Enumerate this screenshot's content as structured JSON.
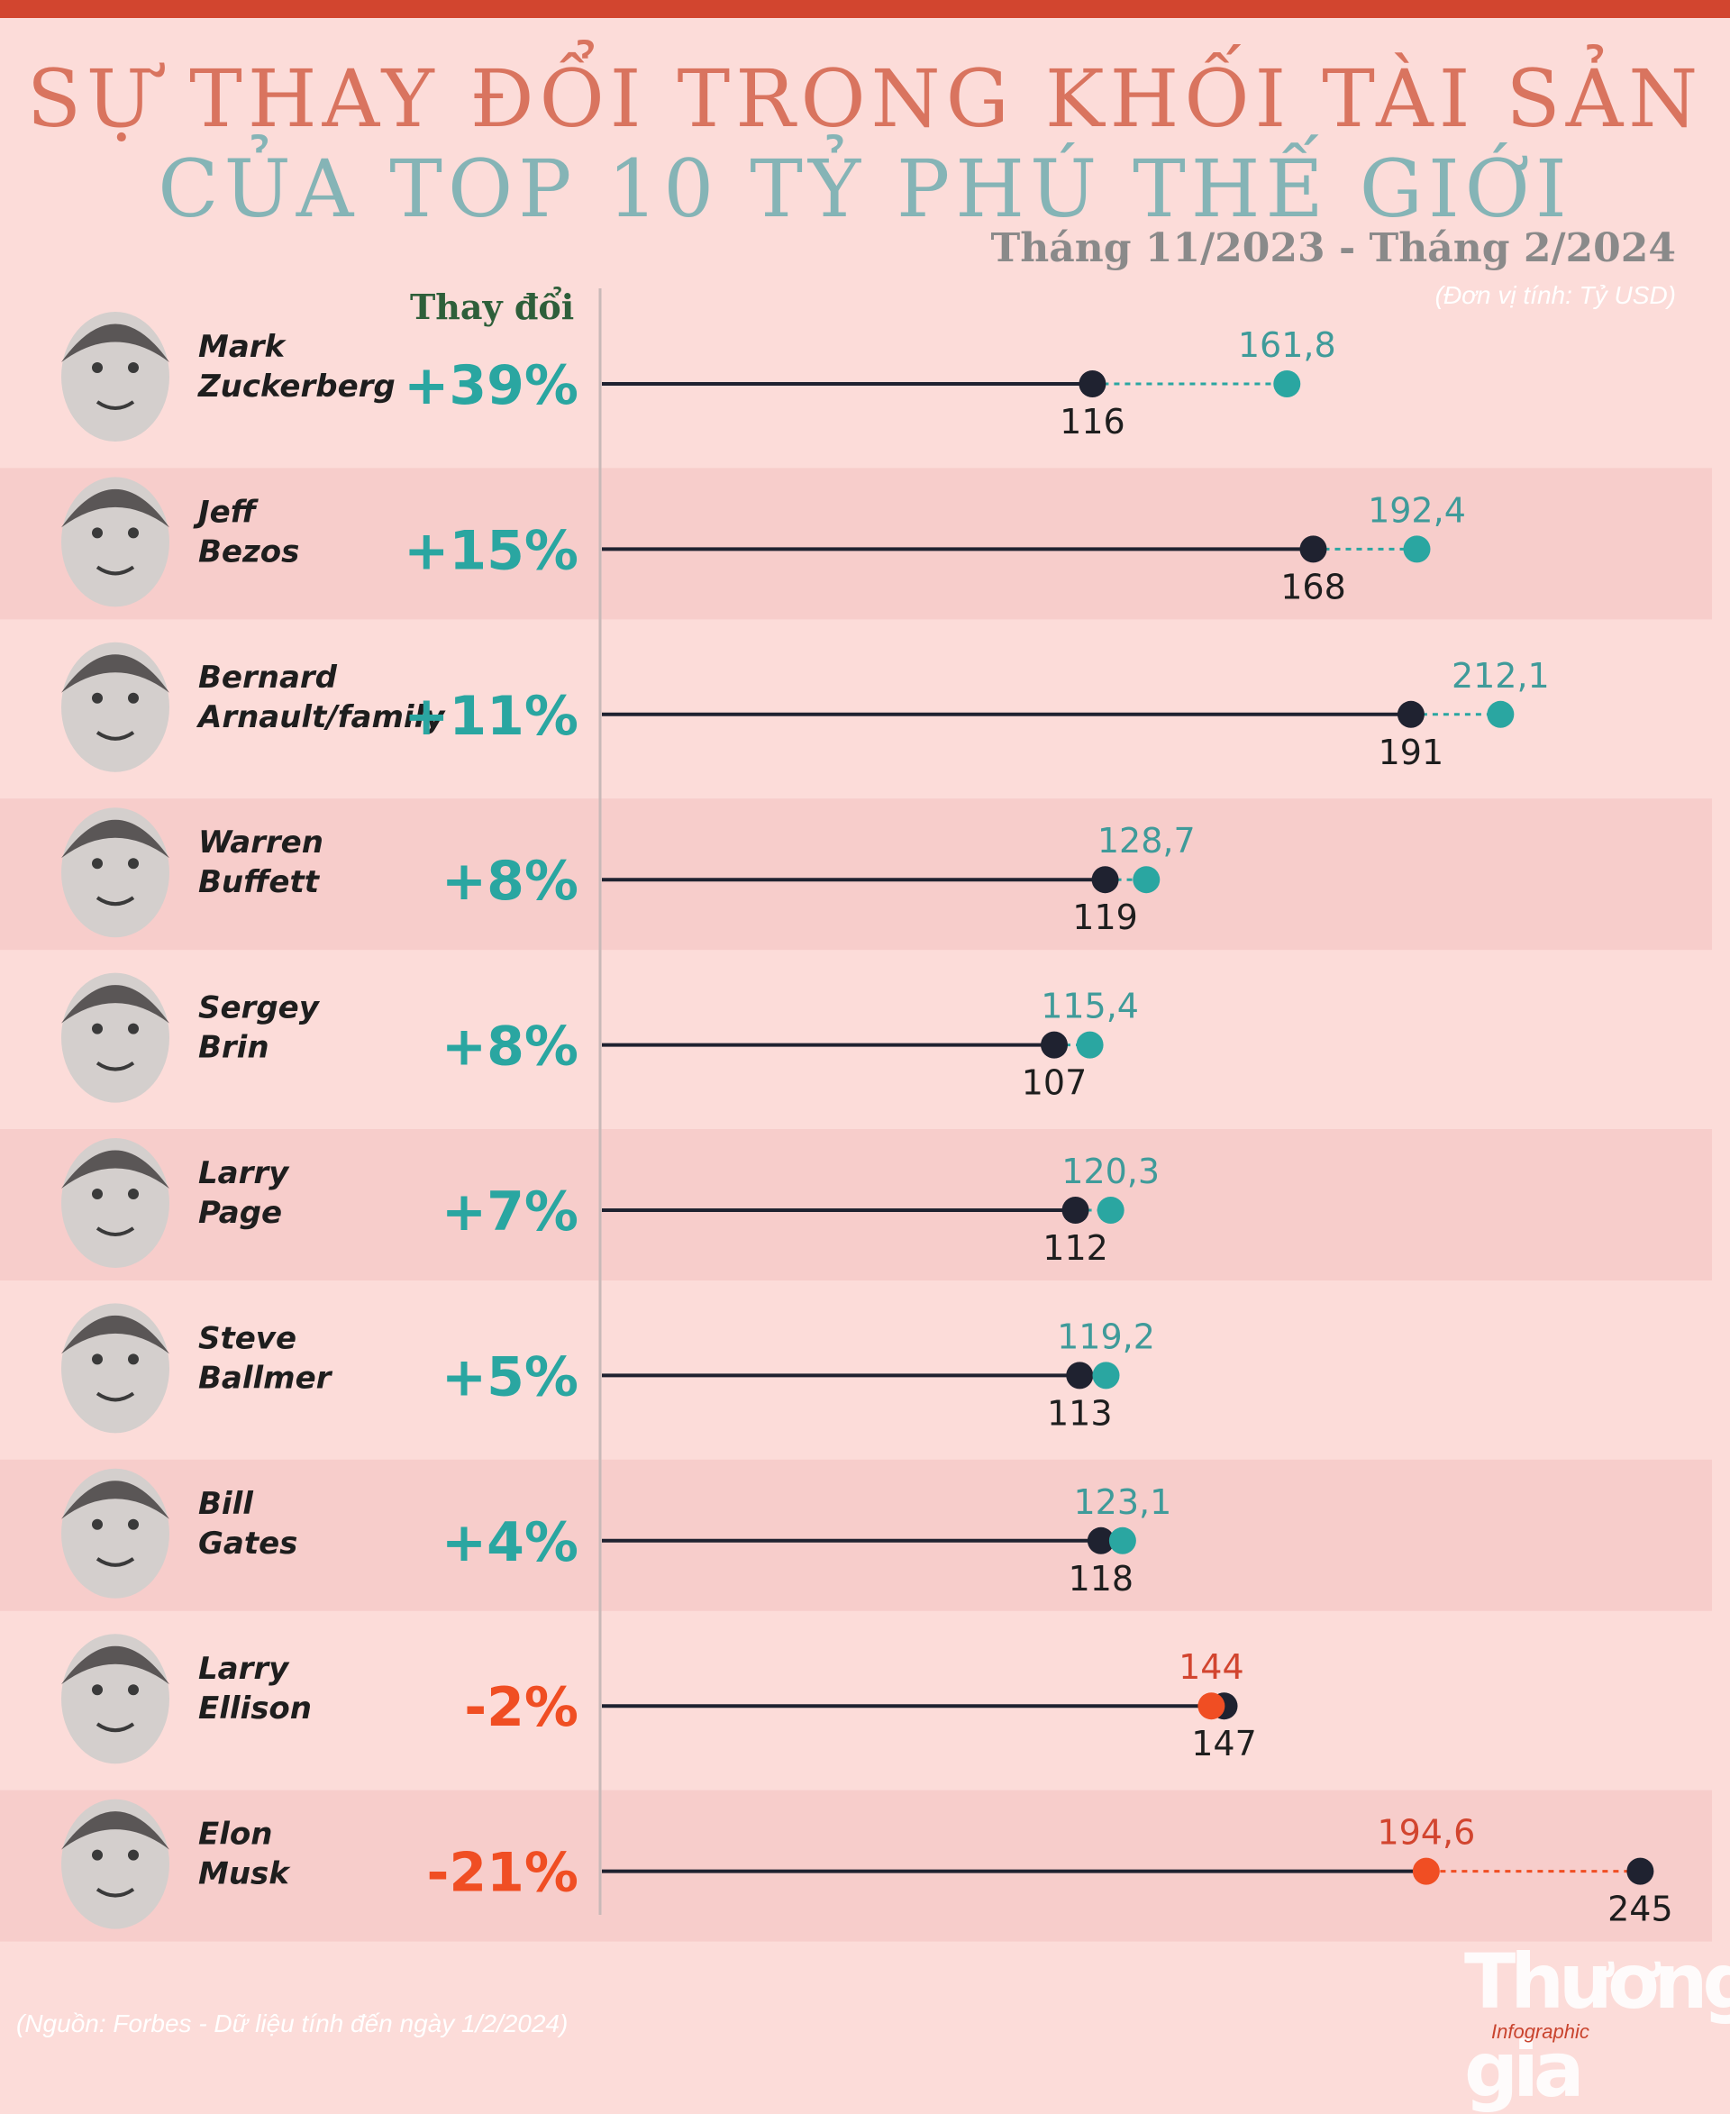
{
  "title_line1": "SỰ THAY ĐỔI TRONG KHỐI TÀI SẢN",
  "title_line2": "CỦA TOP 10 TỶ PHÚ THẾ GIỚI",
  "subtitle": "Tháng 11/2023 - Tháng 2/2024",
  "unit": "(Đơn vị tính: Tỷ USD)",
  "change_header": "Thay đổi",
  "source": "(Nguồn: Forbes - Dữ liệu tính đến ngày 1/2/2024)",
  "logo": {
    "main": "Thương gia",
    "sub": "Infographic"
  },
  "colors": {
    "increase": "#2aa6a1",
    "decrease": "#f04e23",
    "base": "#1f2230",
    "band": "#f7cdcb"
  },
  "chart_data": {
    "type": "dumbbell",
    "title": "SỰ THAY ĐỔI TRONG KHỐI TÀI SẢN CỦA TOP 10 TỶ PHÚ THẾ GIỚI",
    "period_start": "Tháng 11/2023",
    "period_end": "Tháng 2/2024",
    "unit": "Tỷ USD",
    "xlim": [
      0,
      250
    ],
    "rows": [
      {
        "name_line1": "Mark",
        "name_line2": "Zuckerberg",
        "change": "+39%",
        "start": 116,
        "end": 161.8,
        "start_label": "116",
        "end_label": "161,8"
      },
      {
        "name_line1": "Jeff",
        "name_line2": "Bezos",
        "change": "+15%",
        "start": 168,
        "end": 192.4,
        "start_label": "168",
        "end_label": "192,4"
      },
      {
        "name_line1": "Bernard",
        "name_line2": "Arnault/family",
        "change": "+11%",
        "start": 191,
        "end": 212.1,
        "start_label": "191",
        "end_label": "212,1"
      },
      {
        "name_line1": "Warren",
        "name_line2": "Buffett",
        "change": "+8%",
        "start": 119,
        "end": 128.7,
        "start_label": "119",
        "end_label": "128,7"
      },
      {
        "name_line1": "Sergey",
        "name_line2": "Brin",
        "change": "+8%",
        "start": 107,
        "end": 115.4,
        "start_label": "107",
        "end_label": "115,4"
      },
      {
        "name_line1": "Larry",
        "name_line2": "Page",
        "change": "+7%",
        "start": 112,
        "end": 120.3,
        "start_label": "112",
        "end_label": "120,3"
      },
      {
        "name_line1": "Steve",
        "name_line2": "Ballmer",
        "change": "+5%",
        "start": 113,
        "end": 119.2,
        "start_label": "113",
        "end_label": "119,2"
      },
      {
        "name_line1": "Bill",
        "name_line2": "Gates",
        "change": "+4%",
        "start": 118,
        "end": 123.1,
        "start_label": "118",
        "end_label": "123,1"
      },
      {
        "name_line1": "Larry",
        "name_line2": "Ellison",
        "change": "-2%",
        "start": 147,
        "end": 144,
        "start_label": "147",
        "end_label": "144"
      },
      {
        "name_line1": "Elon",
        "name_line2": "Musk",
        "change": "-21%",
        "start": 245,
        "end": 194.6,
        "start_label": "245",
        "end_label": "194,6"
      }
    ]
  }
}
